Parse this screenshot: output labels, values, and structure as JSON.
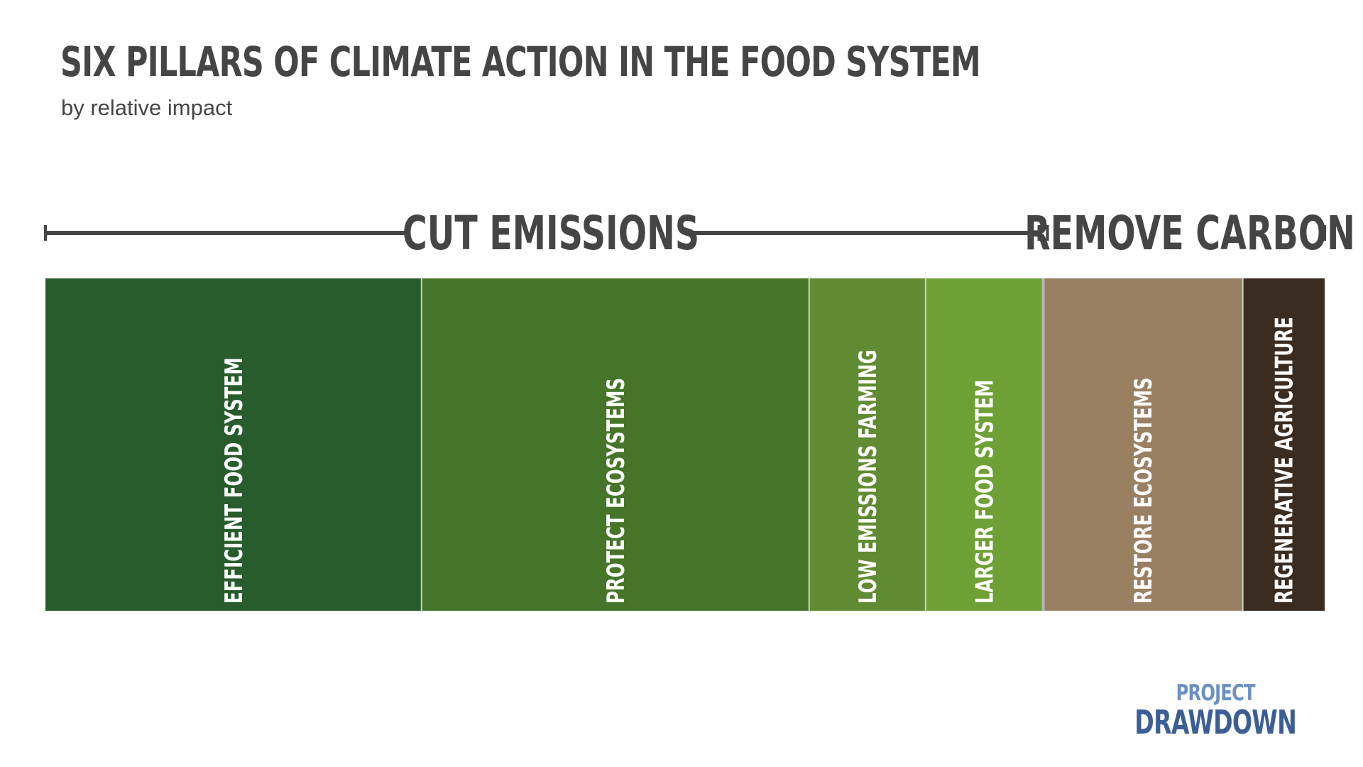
{
  "chart_data": {
    "type": "bar",
    "title": "SIX PILLARS OF CLIMATE ACTION IN THE FOOD SYSTEM",
    "subtitle": "by relative impact",
    "groups": [
      {
        "label": "CUT EMISSIONS",
        "members": [
          "EFFICIENT FOOD SYSTEM",
          "PROTECT ECOSYSTEMS",
          "LOW EMISSIONS FARMING",
          "LARGER FOOD SYSTEM"
        ]
      },
      {
        "label": "REMOVE CARBON",
        "members": [
          "RESTORE ECOSYSTEMS",
          "REGENERATIVE AGRICULTURE"
        ]
      }
    ],
    "categories": [
      "EFFICIENT FOOD SYSTEM",
      "PROTECT ECOSYSTEMS",
      "LOW EMISSIONS FARMING",
      "LARGER FOOD SYSTEM",
      "RESTORE ECOSYSTEMS",
      "REGENERATIVE AGRICULTURE"
    ],
    "values": [
      29.4,
      30.3,
      9.1,
      9.2,
      15.6,
      6.4
    ],
    "colors": [
      "#285c2d",
      "#467529",
      "#618b32",
      "#6fa036",
      "#9a8063",
      "#3b2c21"
    ]
  },
  "logo": {
    "line1": "PROJECT",
    "line2": "DRAWDOWN"
  }
}
